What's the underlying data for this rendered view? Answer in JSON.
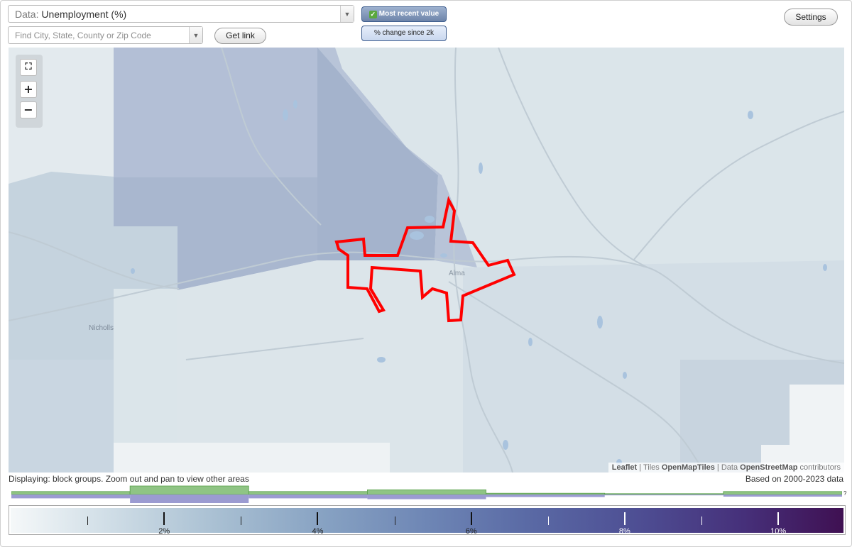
{
  "data_selector": {
    "prefix": "Data:",
    "value": "Unemployment (%)"
  },
  "search": {
    "placeholder": "Find City, State, County or Zip Code"
  },
  "buttons": {
    "get_link": "Get link",
    "settings": "Settings"
  },
  "view_toggle": {
    "most_recent": "Most recent value",
    "pct_change": "% change since 2k",
    "active": "Most recent value"
  },
  "map": {
    "zoom": {
      "fit": "⛶",
      "in": "+",
      "out": "−"
    },
    "labels": {
      "nicholls": "Nicholls",
      "alma": "Alma"
    },
    "attribution": {
      "leaflet": "Leaflet",
      "tiles_prefix": "Tiles",
      "tiles": "OpenMapTiles",
      "data_prefix": "Data",
      "data": "OpenStreetMap",
      "suffix": "contributors"
    },
    "colors": {
      "highlight_outline": "#ff0000",
      "roads": "#bfcbd4",
      "water": "#a9c3de"
    }
  },
  "status": {
    "displaying": "Displaying: block groups. Zoom out and pan to view other areas",
    "based_on": "Based on 2000-2023 data",
    "unknown_marker": "?"
  },
  "histogram": {
    "green_fraction": [
      0.35,
      1.0,
      0.35,
      0.55,
      0.15,
      0.1,
      0.35
    ],
    "purple_fraction": [
      0.45,
      1.0,
      0.45,
      0.55,
      0.3,
      0.1,
      0.25
    ],
    "colors": {
      "green": "#8fc484",
      "green_line": "#58a04a",
      "purple": "#9b9bd1"
    }
  },
  "legend": {
    "labels": [
      "2%",
      "4%",
      "6%",
      "8%",
      "10%"
    ],
    "colors": {
      "low": "#f5f8f9",
      "high": "#3f1052"
    }
  }
}
